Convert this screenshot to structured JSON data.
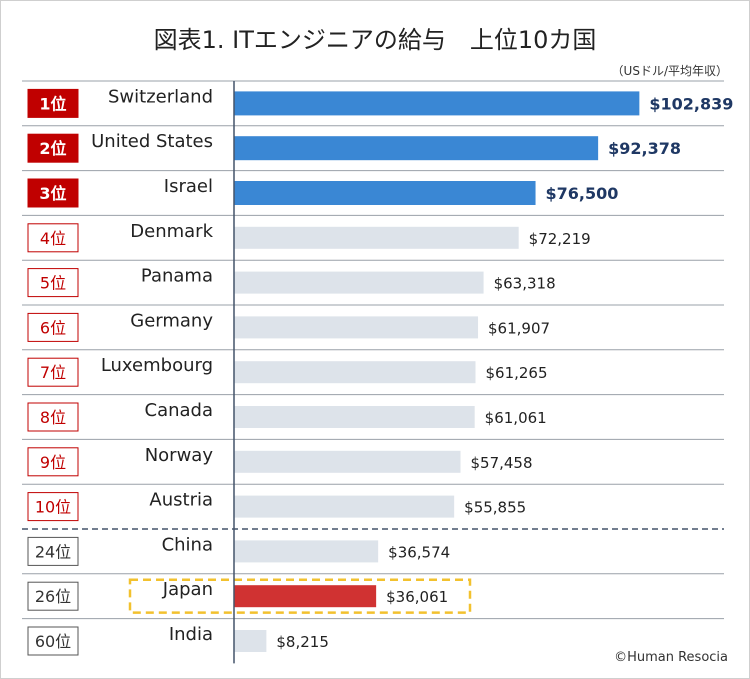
{
  "title": "図表1. ITエンジニアの給与　上位10カ国",
  "unit_note": "（USドル/平均年収）",
  "credit": "©Human Resocia",
  "colors": {
    "top_bar": "#3a87d4",
    "other_bar": "#dde3ea",
    "japan_bar": "#d03232",
    "top_badge": "#c00000",
    "top_value_text": "#1f3864",
    "rank_outline": "#c00000",
    "lower_rank_outline": "#555555",
    "highlight_box": "#f2c12e",
    "separator": "#44546a"
  },
  "chart_data": {
    "type": "bar",
    "orientation": "horizontal",
    "title": "図表1. ITエンジニアの給与　上位10カ国",
    "unit": "（USドル/平均年収）",
    "categories": [
      "Switzerland",
      "United States",
      "Israel",
      "Denmark",
      "Panama",
      "Germany",
      "Luxembourg",
      "Canada",
      "Norway",
      "Austria",
      "China",
      "Japan",
      "India"
    ],
    "ranks": [
      "1位",
      "2位",
      "3位",
      "4位",
      "5位",
      "6位",
      "7位",
      "8位",
      "9位",
      "10位",
      "24位",
      "26位",
      "60位"
    ],
    "values": [
      102839,
      92378,
      76500,
      72219,
      63318,
      61907,
      61265,
      61061,
      57458,
      55855,
      36574,
      36061,
      8215
    ],
    "value_labels": [
      "$102,839",
      "$92,378",
      "$76,500",
      "$72,219",
      "$63,318",
      "$61,907",
      "$61,265",
      "$61,061",
      "$57,458",
      "$55,855",
      "$36,574",
      "$36,061",
      "$8,215"
    ],
    "highlighted_top": 3,
    "highlighted_category": "Japan",
    "separator_after": "Austria",
    "xlim": [
      0,
      103000
    ]
  }
}
